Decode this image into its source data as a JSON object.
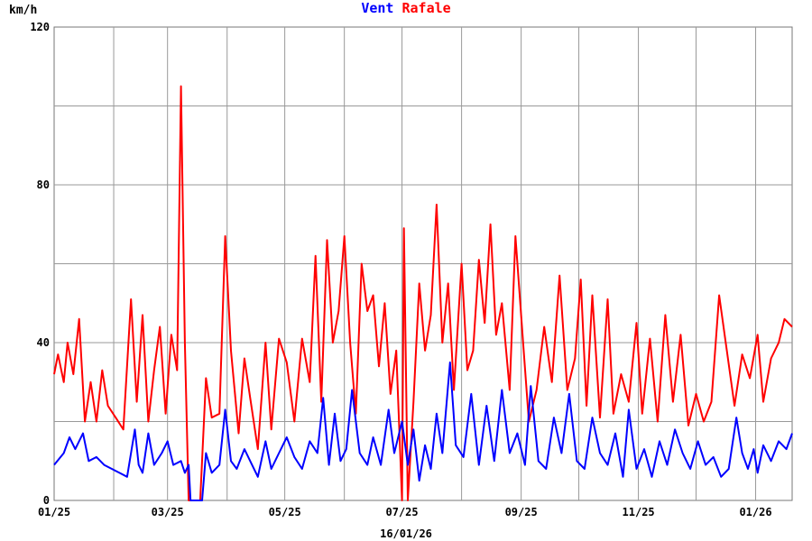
{
  "chart_data": {
    "type": "line",
    "title_parts": [
      {
        "text": "Vent",
        "color": "#0000ff"
      },
      {
        "text": "Rafale",
        "color": "#ff0000"
      }
    ],
    "ylabel": "km/h",
    "xlabel": "16/01/26",
    "ylim": [
      0,
      120
    ],
    "y_ticks": [
      "0",
      "40",
      "80",
      "120"
    ],
    "x_range": [
      "2025-01-01",
      "2026-01-20"
    ],
    "x_ticks": [
      {
        "label": "01/25",
        "date": "2025-01-01"
      },
      {
        "label": "03/25",
        "date": "2025-03-01"
      },
      {
        "label": "05/25",
        "date": "2025-05-01"
      },
      {
        "label": "07/25",
        "date": "2025-07-01"
      },
      {
        "label": "09/25",
        "date": "2025-09-01"
      },
      {
        "label": "11/25",
        "date": "2025-11-01"
      },
      {
        "label": "01/26",
        "date": "2026-01-01"
      }
    ],
    "grid": true,
    "series": [
      {
        "name": "Vent",
        "color": "#0000ff",
        "points": [
          [
            "2025-01-01",
            9
          ],
          [
            "2025-01-06",
            12
          ],
          [
            "2025-01-09",
            16
          ],
          [
            "2025-01-12",
            13
          ],
          [
            "2025-01-16",
            17
          ],
          [
            "2025-01-19",
            10
          ],
          [
            "2025-01-23",
            11
          ],
          [
            "2025-01-27",
            9
          ],
          [
            "2025-01-31",
            8
          ],
          [
            "2025-02-04",
            7
          ],
          [
            "2025-02-08",
            6
          ],
          [
            "2025-02-12",
            18
          ],
          [
            "2025-02-14",
            9
          ],
          [
            "2025-02-16",
            7
          ],
          [
            "2025-02-19",
            17
          ],
          [
            "2025-02-22",
            9
          ],
          [
            "2025-02-26",
            12
          ],
          [
            "2025-03-01",
            15
          ],
          [
            "2025-03-04",
            9
          ],
          [
            "2025-03-08",
            10
          ],
          [
            "2025-03-10",
            7
          ],
          [
            "2025-03-12",
            9
          ],
          [
            "2025-03-13",
            0
          ],
          [
            "2025-03-19",
            0
          ],
          [
            "2025-03-21",
            12
          ],
          [
            "2025-03-24",
            7
          ],
          [
            "2025-03-28",
            9
          ],
          [
            "2025-03-31",
            23
          ],
          [
            "2025-04-03",
            10
          ],
          [
            "2025-04-06",
            8
          ],
          [
            "2025-04-10",
            13
          ],
          [
            "2025-04-13",
            10
          ],
          [
            "2025-04-17",
            6
          ],
          [
            "2025-04-21",
            15
          ],
          [
            "2025-04-24",
            8
          ],
          [
            "2025-04-28",
            12
          ],
          [
            "2025-05-02",
            16
          ],
          [
            "2025-05-06",
            11
          ],
          [
            "2025-05-10",
            8
          ],
          [
            "2025-05-14",
            15
          ],
          [
            "2025-05-18",
            12
          ],
          [
            "2025-05-21",
            26
          ],
          [
            "2025-05-24",
            9
          ],
          [
            "2025-05-27",
            22
          ],
          [
            "2025-05-30",
            10
          ],
          [
            "2025-06-02",
            13
          ],
          [
            "2025-06-05",
            28
          ],
          [
            "2025-06-09",
            12
          ],
          [
            "2025-06-13",
            9
          ],
          [
            "2025-06-16",
            16
          ],
          [
            "2025-06-20",
            9
          ],
          [
            "2025-06-24",
            23
          ],
          [
            "2025-06-27",
            12
          ],
          [
            "2025-07-01",
            20
          ],
          [
            "2025-07-04",
            9
          ],
          [
            "2025-07-07",
            18
          ],
          [
            "2025-07-10",
            5
          ],
          [
            "2025-07-13",
            14
          ],
          [
            "2025-07-16",
            8
          ],
          [
            "2025-07-19",
            22
          ],
          [
            "2025-07-22",
            12
          ],
          [
            "2025-07-26",
            35
          ],
          [
            "2025-07-29",
            14
          ],
          [
            "2025-08-02",
            11
          ],
          [
            "2025-08-06",
            27
          ],
          [
            "2025-08-10",
            9
          ],
          [
            "2025-08-14",
            24
          ],
          [
            "2025-08-18",
            10
          ],
          [
            "2025-08-22",
            28
          ],
          [
            "2025-08-26",
            12
          ],
          [
            "2025-08-30",
            17
          ],
          [
            "2025-09-03",
            9
          ],
          [
            "2025-09-06",
            29
          ],
          [
            "2025-09-10",
            10
          ],
          [
            "2025-09-14",
            8
          ],
          [
            "2025-09-18",
            21
          ],
          [
            "2025-09-22",
            12
          ],
          [
            "2025-09-26",
            27
          ],
          [
            "2025-09-30",
            10
          ],
          [
            "2025-10-04",
            8
          ],
          [
            "2025-10-08",
            21
          ],
          [
            "2025-10-12",
            12
          ],
          [
            "2025-10-16",
            9
          ],
          [
            "2025-10-20",
            17
          ],
          [
            "2025-10-24",
            6
          ],
          [
            "2025-10-27",
            23
          ],
          [
            "2025-10-31",
            8
          ],
          [
            "2025-11-04",
            13
          ],
          [
            "2025-11-08",
            6
          ],
          [
            "2025-11-12",
            15
          ],
          [
            "2025-11-16",
            9
          ],
          [
            "2025-11-20",
            18
          ],
          [
            "2025-11-24",
            12
          ],
          [
            "2025-11-28",
            8
          ],
          [
            "2025-12-02",
            15
          ],
          [
            "2025-12-06",
            9
          ],
          [
            "2025-12-10",
            11
          ],
          [
            "2025-12-14",
            6
          ],
          [
            "2025-12-18",
            8
          ],
          [
            "2025-12-22",
            21
          ],
          [
            "2025-12-25",
            12
          ],
          [
            "2025-12-28",
            8
          ],
          [
            "2025-12-31",
            13
          ],
          [
            "2026-01-02",
            7
          ],
          [
            "2026-01-05",
            14
          ],
          [
            "2026-01-09",
            10
          ],
          [
            "2026-01-13",
            15
          ],
          [
            "2026-01-17",
            13
          ],
          [
            "2026-01-20",
            17
          ]
        ]
      },
      {
        "name": "Rafale",
        "color": "#ff0000",
        "points": [
          [
            "2025-01-01",
            32
          ],
          [
            "2025-01-03",
            37
          ],
          [
            "2025-01-06",
            30
          ],
          [
            "2025-01-08",
            40
          ],
          [
            "2025-01-11",
            32
          ],
          [
            "2025-01-14",
            46
          ],
          [
            "2025-01-17",
            20
          ],
          [
            "2025-01-20",
            30
          ],
          [
            "2025-01-23",
            20
          ],
          [
            "2025-01-26",
            33
          ],
          [
            "2025-01-29",
            24
          ],
          [
            "2025-02-02",
            21
          ],
          [
            "2025-02-06",
            18
          ],
          [
            "2025-02-10",
            51
          ],
          [
            "2025-02-13",
            25
          ],
          [
            "2025-02-16",
            47
          ],
          [
            "2025-02-19",
            20
          ],
          [
            "2025-02-22",
            33
          ],
          [
            "2025-02-25",
            44
          ],
          [
            "2025-02-28",
            22
          ],
          [
            "2025-03-03",
            42
          ],
          [
            "2025-03-06",
            33
          ],
          [
            "2025-03-08",
            105
          ],
          [
            "2025-03-10",
            40
          ],
          [
            "2025-03-12",
            0
          ],
          [
            "2025-03-18",
            0
          ],
          [
            "2025-03-21",
            31
          ],
          [
            "2025-03-24",
            21
          ],
          [
            "2025-03-28",
            22
          ],
          [
            "2025-03-31",
            67
          ],
          [
            "2025-04-03",
            38
          ],
          [
            "2025-04-07",
            17
          ],
          [
            "2025-04-10",
            36
          ],
          [
            "2025-04-13",
            26
          ],
          [
            "2025-04-17",
            13
          ],
          [
            "2025-04-21",
            40
          ],
          [
            "2025-04-24",
            18
          ],
          [
            "2025-04-28",
            41
          ],
          [
            "2025-05-02",
            35
          ],
          [
            "2025-05-06",
            20
          ],
          [
            "2025-05-10",
            41
          ],
          [
            "2025-05-14",
            30
          ],
          [
            "2025-05-17",
            62
          ],
          [
            "2025-05-20",
            25
          ],
          [
            "2025-05-23",
            66
          ],
          [
            "2025-05-26",
            40
          ],
          [
            "2025-05-29",
            48
          ],
          [
            "2025-06-01",
            67
          ],
          [
            "2025-06-04",
            40
          ],
          [
            "2025-06-07",
            22
          ],
          [
            "2025-06-10",
            60
          ],
          [
            "2025-06-13",
            48
          ],
          [
            "2025-06-16",
            52
          ],
          [
            "2025-06-19",
            34
          ],
          [
            "2025-06-22",
            50
          ],
          [
            "2025-06-25",
            27
          ],
          [
            "2025-06-28",
            38
          ],
          [
            "2025-07-01",
            0
          ],
          [
            "2025-07-02",
            69
          ],
          [
            "2025-07-04",
            0
          ],
          [
            "2025-07-07",
            25
          ],
          [
            "2025-07-10",
            55
          ],
          [
            "2025-07-13",
            38
          ],
          [
            "2025-07-16",
            47
          ],
          [
            "2025-07-19",
            75
          ],
          [
            "2025-07-22",
            40
          ],
          [
            "2025-07-25",
            55
          ],
          [
            "2025-07-28",
            28
          ],
          [
            "2025-08-01",
            60
          ],
          [
            "2025-08-04",
            33
          ],
          [
            "2025-08-07",
            38
          ],
          [
            "2025-08-10",
            61
          ],
          [
            "2025-08-13",
            45
          ],
          [
            "2025-08-16",
            70
          ],
          [
            "2025-08-19",
            42
          ],
          [
            "2025-08-22",
            50
          ],
          [
            "2025-08-26",
            28
          ],
          [
            "2025-08-29",
            67
          ],
          [
            "2025-09-02",
            40
          ],
          [
            "2025-09-05",
            20
          ],
          [
            "2025-09-09",
            28
          ],
          [
            "2025-09-13",
            44
          ],
          [
            "2025-09-17",
            30
          ],
          [
            "2025-09-21",
            57
          ],
          [
            "2025-09-25",
            28
          ],
          [
            "2025-09-29",
            36
          ],
          [
            "2025-10-02",
            56
          ],
          [
            "2025-10-05",
            24
          ],
          [
            "2025-10-08",
            52
          ],
          [
            "2025-10-12",
            21
          ],
          [
            "2025-10-16",
            51
          ],
          [
            "2025-10-19",
            22
          ],
          [
            "2025-10-23",
            32
          ],
          [
            "2025-10-27",
            25
          ],
          [
            "2025-10-31",
            45
          ],
          [
            "2025-11-03",
            22
          ],
          [
            "2025-11-07",
            41
          ],
          [
            "2025-11-11",
            20
          ],
          [
            "2025-11-15",
            47
          ],
          [
            "2025-11-19",
            25
          ],
          [
            "2025-11-23",
            42
          ],
          [
            "2025-11-27",
            19
          ],
          [
            "2025-12-01",
            27
          ],
          [
            "2025-12-05",
            20
          ],
          [
            "2025-12-09",
            25
          ],
          [
            "2025-12-13",
            52
          ],
          [
            "2025-12-17",
            38
          ],
          [
            "2025-12-21",
            24
          ],
          [
            "2025-12-25",
            37
          ],
          [
            "2025-12-29",
            31
          ],
          [
            "2026-01-02",
            42
          ],
          [
            "2026-01-05",
            25
          ],
          [
            "2026-01-09",
            36
          ],
          [
            "2026-01-13",
            40
          ],
          [
            "2026-01-16",
            46
          ],
          [
            "2026-01-20",
            44
          ]
        ]
      }
    ]
  }
}
